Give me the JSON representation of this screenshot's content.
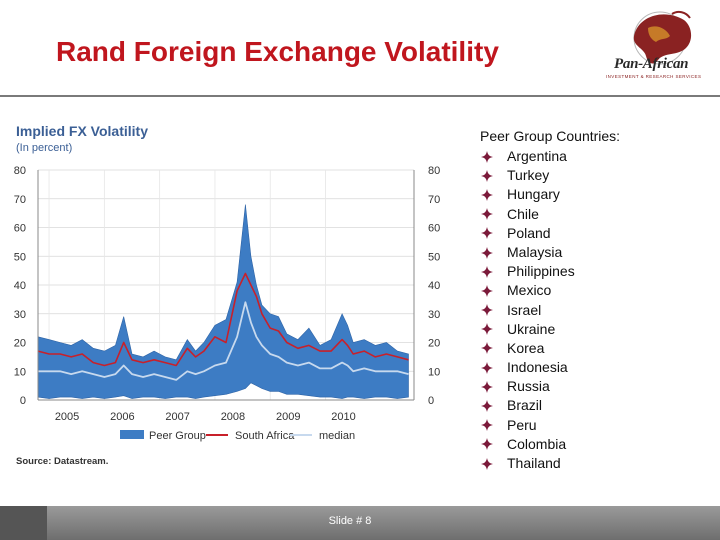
{
  "slide": {
    "title": "Rand Foreign Exchange Volatility",
    "slide_number": "Slide # 8"
  },
  "logo": {
    "name": "Pan-African",
    "tagline": "INVESTMENT & RESEARCH SERVICES"
  },
  "peer_group": {
    "heading": "Peer Group Countries:",
    "countries": [
      "Argentina",
      "Turkey",
      "Hungary",
      "Chile",
      "Poland",
      "Malaysia",
      "Philippines",
      "Mexico",
      "Israel",
      "Ukraine",
      "Korea",
      "Indonesia",
      "Russia",
      "Brazil",
      "Peru",
      "Colombia",
      "Thailand"
    ]
  },
  "colors": {
    "title": "#c0161e",
    "band": "#3d7cc4",
    "south_africa": "#c8202a",
    "median": "#c7d9ee",
    "bullet": "#7b1a3a"
  },
  "chart_data": {
    "type": "area",
    "title": "Implied FX Volatility",
    "subtitle": "(In percent)",
    "source": "Source: Datastream.",
    "ylim": [
      0,
      80
    ],
    "yticks": [
      "0",
      "10",
      "20",
      "30",
      "40",
      "50",
      "60",
      "70",
      "80"
    ],
    "xlim": [
      2004.8,
      2011.6
    ],
    "xticks": [
      {
        "value": 2005.0,
        "label": "2005"
      },
      {
        "value": 2006.0,
        "label": "2006"
      },
      {
        "value": 2007.0,
        "label": "2007"
      },
      {
        "value": 2008.0,
        "label": "2008"
      },
      {
        "value": 2009.0,
        "label": "2009"
      },
      {
        "value": 2010.0,
        "label": "2010"
      }
    ],
    "legend": [
      "Peer Group",
      "South Africa",
      "median"
    ],
    "x": [
      2004.8,
      2005.0,
      2005.2,
      2005.4,
      2005.6,
      2005.8,
      2006.0,
      2006.2,
      2006.35,
      2006.5,
      2006.7,
      2006.9,
      2007.1,
      2007.3,
      2007.5,
      2007.65,
      2007.8,
      2008.0,
      2008.2,
      2008.4,
      2008.55,
      2008.65,
      2008.75,
      2008.85,
      2009.0,
      2009.15,
      2009.3,
      2009.5,
      2009.7,
      2009.9,
      2010.1,
      2010.3,
      2010.4,
      2010.5,
      2010.7,
      2010.9,
      2011.1,
      2011.3,
      2011.5
    ],
    "series": [
      {
        "name": "Peer Group (lower)",
        "values": [
          1,
          0.5,
          1,
          1,
          0.5,
          1,
          0.5,
          1,
          1.5,
          0.5,
          1,
          1,
          0.5,
          1,
          1,
          0.5,
          1,
          1.5,
          2,
          3,
          4,
          6,
          5,
          4,
          3,
          3,
          2,
          2,
          1.5,
          1,
          1,
          0.5,
          1,
          1,
          0.5,
          1,
          1,
          0.5,
          1
        ]
      },
      {
        "name": "Peer Group (upper)",
        "values": [
          22,
          21,
          20,
          19,
          21,
          18,
          17,
          19,
          29,
          16,
          15,
          17,
          15,
          14,
          21,
          17,
          20,
          26,
          28,
          41,
          68,
          50,
          40,
          33,
          30,
          29,
          23,
          21,
          25,
          19,
          21,
          30,
          26,
          20,
          21,
          19,
          20,
          17,
          16
        ]
      },
      {
        "name": "South Africa",
        "values": [
          17,
          16,
          16,
          15,
          16,
          13,
          12,
          13,
          20,
          14,
          13,
          14,
          13,
          12,
          18,
          15,
          17,
          22,
          20,
          38,
          44,
          40,
          36,
          30,
          25,
          24,
          20,
          18,
          19,
          17,
          17,
          21,
          19,
          16,
          17,
          15,
          16,
          15,
          14
        ]
      },
      {
        "name": "median",
        "values": [
          10,
          10,
          10,
          9,
          10,
          9,
          8,
          9,
          12,
          9,
          8,
          9,
          8,
          7,
          10,
          9,
          10,
          12,
          13,
          22,
          34,
          27,
          22,
          19,
          16,
          15,
          13,
          12,
          13,
          11,
          11,
          13,
          12,
          10,
          11,
          10,
          10,
          10,
          9
        ]
      }
    ]
  }
}
